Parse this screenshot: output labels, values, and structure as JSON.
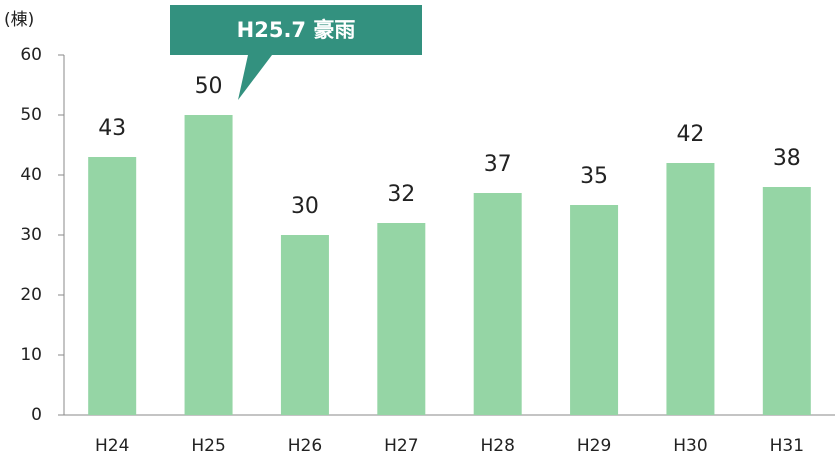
{
  "chart_data": {
    "type": "bar",
    "unit_label": "(棟)",
    "annotation": "H25.7 豪雨",
    "categories": [
      "H24",
      "H25",
      "H26",
      "H27",
      "H28",
      "H29",
      "H30",
      "H31"
    ],
    "values": [
      43,
      50,
      30,
      32,
      37,
      35,
      42,
      38
    ],
    "color": "#95d5a5",
    "ylim": [
      0,
      60
    ],
    "yticks": [
      0,
      10,
      20,
      30,
      40,
      50,
      60
    ],
    "grid": false
  }
}
